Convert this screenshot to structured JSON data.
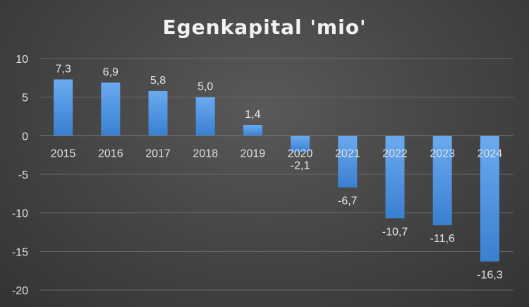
{
  "chart_data": {
    "type": "bar",
    "title": "Egenkapital 'mio'",
    "categories": [
      "2015",
      "2016",
      "2017",
      "2018",
      "2019",
      "2020",
      "2021",
      "2022",
      "2023",
      "2024"
    ],
    "values": [
      7.3,
      6.9,
      5.8,
      5.0,
      1.4,
      -2.1,
      -6.7,
      -10.7,
      -11.6,
      -16.3
    ],
    "data_labels": [
      "7,3",
      "6,9",
      "5,8",
      "5,0",
      "1,4",
      "-2,1",
      "-6,7",
      "-10,7",
      "-11,6",
      "-16,3"
    ],
    "yticks": [
      10,
      5,
      0,
      -5,
      -10,
      -15,
      -20
    ],
    "ytick_labels": [
      "10",
      "5",
      "0",
      "-5",
      "-10",
      "-15",
      "-20"
    ],
    "ylim": [
      -20,
      10
    ],
    "xlabel": "",
    "ylabel": "",
    "grid": true,
    "legend": "none",
    "colors": {
      "bar_top": "#6aaaf0",
      "bar_bottom": "#3a7fd0",
      "background": "#444444",
      "text": "#e0e0e0"
    }
  }
}
